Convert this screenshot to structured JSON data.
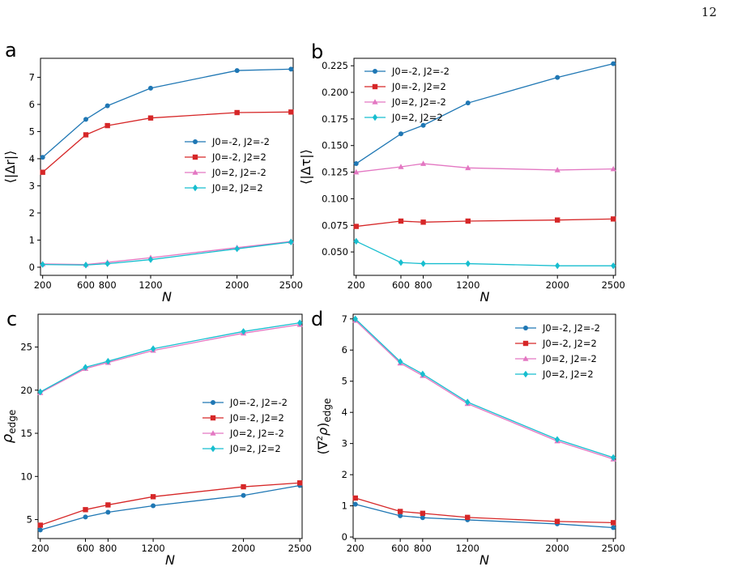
{
  "page_number": "12",
  "chart_data": [
    {
      "panel": "a",
      "type": "line",
      "xlabel": "N",
      "ylabel": "⟨|Δr|⟩",
      "ylim": [
        -0.3,
        7.7
      ],
      "yticks": [
        0,
        1,
        2,
        3,
        4,
        5,
        6,
        7
      ],
      "ytick_labels": [
        "0",
        "1",
        "2",
        "3",
        "4",
        "5",
        "6",
        "7"
      ],
      "legend": "center-right",
      "x": [
        200,
        600,
        800,
        1200,
        2000,
        2500
      ],
      "series": [
        {
          "name": "J0=-2, J2=-2",
          "color": "#1f77b4",
          "marker": "circle",
          "values": [
            4.05,
            5.45,
            5.95,
            6.6,
            7.25,
            7.3
          ]
        },
        {
          "name": "J0=-2, J2=2",
          "color": "#d62728",
          "marker": "square",
          "values": [
            3.5,
            4.88,
            5.22,
            5.5,
            5.7,
            5.72
          ]
        },
        {
          "name": "J0=2, J2=-2",
          "color": "#e377c2",
          "marker": "triangle",
          "values": [
            0.12,
            0.1,
            0.18,
            0.35,
            0.72,
            0.95
          ]
        },
        {
          "name": "J0=2, J2=2",
          "color": "#17becf",
          "marker": "diamond",
          "values": [
            0.1,
            0.08,
            0.13,
            0.28,
            0.68,
            0.93
          ]
        }
      ]
    },
    {
      "panel": "b",
      "type": "line",
      "xlabel": "N",
      "ylabel": "⟨|Δτ|⟩",
      "ylim": [
        0.028,
        0.232
      ],
      "yticks": [
        0.05,
        0.075,
        0.1,
        0.125,
        0.15,
        0.175,
        0.2,
        0.225
      ],
      "ytick_labels": [
        "0.050",
        "0.075",
        "0.100",
        "0.125",
        "0.150",
        "0.175",
        "0.200",
        "0.225"
      ],
      "legend": "top-left",
      "x": [
        200,
        600,
        800,
        1200,
        2000,
        2500
      ],
      "series": [
        {
          "name": "J0=-2, J2=-2",
          "color": "#1f77b4",
          "marker": "circle",
          "values": [
            0.133,
            0.161,
            0.169,
            0.19,
            0.214,
            0.227
          ]
        },
        {
          "name": "J0=-2, J2=2",
          "color": "#d62728",
          "marker": "square",
          "values": [
            0.074,
            0.079,
            0.078,
            0.079,
            0.08,
            0.081
          ]
        },
        {
          "name": "J0=2, J2=-2",
          "color": "#e377c2",
          "marker": "triangle",
          "values": [
            0.125,
            0.13,
            0.133,
            0.129,
            0.127,
            0.128
          ]
        },
        {
          "name": "J0=2, J2=2",
          "color": "#17becf",
          "marker": "diamond",
          "values": [
            0.06,
            0.04,
            0.039,
            0.039,
            0.037,
            0.037
          ]
        }
      ]
    },
    {
      "panel": "c",
      "type": "line",
      "xlabel": "N",
      "ylabel": "ρedge",
      "ylim": [
        2.8,
        28.8
      ],
      "yticks": [
        5,
        10,
        15,
        20,
        25
      ],
      "ytick_labels": [
        "5",
        "10",
        "15",
        "20",
        "25"
      ],
      "legend": "center-right",
      "x": [
        200,
        600,
        800,
        1200,
        2000,
        2500
      ],
      "series": [
        {
          "name": "J0=-2, J2=-2",
          "color": "#1f77b4",
          "marker": "circle",
          "values": [
            3.8,
            5.3,
            5.85,
            6.6,
            7.8,
            8.95
          ]
        },
        {
          "name": "J0=-2, J2=2",
          "color": "#d62728",
          "marker": "square",
          "values": [
            4.35,
            6.15,
            6.7,
            7.65,
            8.8,
            9.25
          ]
        },
        {
          "name": "J0=2, J2=-2",
          "color": "#e377c2",
          "marker": "triangle",
          "values": [
            19.7,
            22.5,
            23.2,
            24.6,
            26.6,
            27.6
          ]
        },
        {
          "name": "J0=2, J2=2",
          "color": "#17becf",
          "marker": "diamond",
          "values": [
            19.8,
            22.65,
            23.35,
            24.8,
            26.8,
            27.8
          ]
        }
      ]
    },
    {
      "panel": "d",
      "type": "line",
      "xlabel": "N",
      "ylabel": "(∇²ρ)edge",
      "ylim": [
        -0.05,
        7.15
      ],
      "yticks": [
        0,
        1,
        2,
        3,
        4,
        5,
        6,
        7
      ],
      "ytick_labels": [
        "0",
        "1",
        "2",
        "3",
        "4",
        "5",
        "6",
        "7"
      ],
      "legend": "top-right",
      "x": [
        200,
        600,
        800,
        1200,
        2000,
        2500
      ],
      "series": [
        {
          "name": "J0=-2, J2=-2",
          "color": "#1f77b4",
          "marker": "circle",
          "values": [
            1.05,
            0.68,
            0.62,
            0.55,
            0.42,
            0.3
          ]
        },
        {
          "name": "J0=-2, J2=2",
          "color": "#d62728",
          "marker": "square",
          "values": [
            1.25,
            0.82,
            0.76,
            0.63,
            0.5,
            0.46
          ]
        },
        {
          "name": "J0=2, J2=-2",
          "color": "#e377c2",
          "marker": "triangle",
          "values": [
            6.95,
            5.58,
            5.18,
            4.28,
            3.08,
            2.5
          ]
        },
        {
          "name": "J0=2, J2=2",
          "color": "#17becf",
          "marker": "diamond",
          "values": [
            7.0,
            5.63,
            5.23,
            4.33,
            3.13,
            2.55
          ]
        }
      ]
    }
  ],
  "xticks": [
    200,
    600,
    800,
    1200,
    2000,
    2500
  ],
  "xtick_labels": [
    "200",
    "600",
    "800",
    "1200",
    "2000",
    "2500"
  ],
  "xlim": [
    180,
    2520
  ]
}
